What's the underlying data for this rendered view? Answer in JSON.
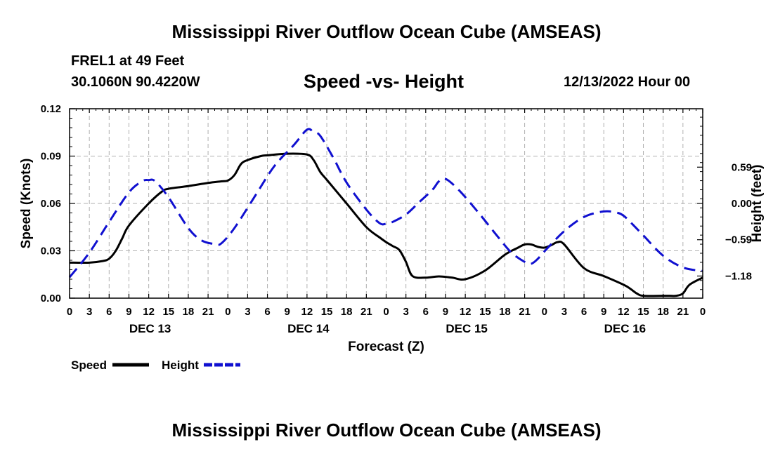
{
  "header": {
    "title": "Mississippi River Outflow Ocean Cube (AMSEAS)",
    "station": "FREL1 at 49 Feet",
    "coords": "30.1060N  90.4220W",
    "subtitle": "Speed -vs- Height",
    "datetime": "12/13/2022 Hour 00"
  },
  "footer": {
    "title": "Mississippi River Outflow Ocean Cube (AMSEAS)"
  },
  "colors": {
    "speed": "#000000",
    "height": "#1010d0",
    "grid": "#b0b0b0"
  },
  "chart_data": {
    "type": "line",
    "title": "Speed -vs- Height",
    "xlabel": "Forecast (Z)",
    "ylabel": "Speed (Knots)",
    "y2label": "Height (feet)",
    "xlim": [
      0,
      96
    ],
    "ylim": [
      0,
      0.12
    ],
    "y2lim": [
      -1.54,
      1.54
    ],
    "x_tick_step_hours": 3,
    "x_tick_labels": [
      "0",
      "3",
      "6",
      "9",
      "12",
      "15",
      "18",
      "21",
      "0",
      "3",
      "6",
      "9",
      "12",
      "15",
      "18",
      "21",
      "0",
      "3",
      "6",
      "9",
      "12",
      "15",
      "18",
      "21",
      "0",
      "3",
      "6",
      "9",
      "12",
      "15",
      "18",
      "21",
      "0"
    ],
    "day_labels": [
      {
        "hour": 12,
        "label": "DEC 13"
      },
      {
        "hour": 36,
        "label": "DEC 14"
      },
      {
        "hour": 60,
        "label": "DEC 15"
      },
      {
        "hour": 84,
        "label": "DEC 16"
      }
    ],
    "y_ticks": [
      0.0,
      0.03,
      0.06,
      0.09,
      0.12
    ],
    "y_tick_labels": [
      "0.00",
      "0.03",
      "0.06",
      "0.09",
      "0.12"
    ],
    "y2_ticks": [
      -1.18,
      -0.59,
      0.0,
      0.59
    ],
    "y2_tick_labels": [
      "−1.18",
      "−0.59",
      "0.00",
      "0.59"
    ],
    "grid": true,
    "legend": [
      "Speed",
      "Height"
    ],
    "series": [
      {
        "name": "Speed",
        "axis": "left",
        "style": "solid",
        "x": [
          0,
          3,
          5,
          6,
          7,
          8,
          9,
          12,
          14,
          15,
          18,
          21,
          23,
          24,
          25,
          26,
          27,
          29,
          30,
          33,
          36,
          37,
          38,
          39,
          42,
          45,
          47,
          48,
          49,
          50,
          51,
          52,
          54,
          56,
          58,
          60,
          63,
          66,
          68,
          69,
          70,
          71,
          72,
          73,
          74,
          75,
          78,
          81,
          84,
          85,
          86,
          87,
          90,
          91,
          92,
          93,
          94,
          96
        ],
        "y": [
          0.0225,
          0.0225,
          0.0235,
          0.025,
          0.03,
          0.038,
          0.046,
          0.06,
          0.0675,
          0.0693,
          0.071,
          0.073,
          0.074,
          0.0745,
          0.078,
          0.085,
          0.0875,
          0.09,
          0.0905,
          0.0915,
          0.091,
          0.0875,
          0.08,
          0.075,
          0.06,
          0.045,
          0.0385,
          0.0355,
          0.033,
          0.0305,
          0.023,
          0.014,
          0.013,
          0.0138,
          0.013,
          0.012,
          0.0175,
          0.0275,
          0.032,
          0.034,
          0.034,
          0.0325,
          0.032,
          0.0335,
          0.0355,
          0.034,
          0.019,
          0.014,
          0.0085,
          0.006,
          0.003,
          0.0015,
          0.0015,
          0.0015,
          0.0015,
          0.003,
          0.0085,
          0.013
        ]
      },
      {
        "name": "Height",
        "axis": "right",
        "style": "dashed",
        "x": [
          0,
          3,
          6,
          9,
          11,
          12,
          13,
          15,
          18,
          20,
          22,
          23,
          25,
          28,
          31,
          34,
          36,
          37,
          38,
          40,
          42,
          45,
          47,
          48,
          49,
          51,
          53,
          55,
          56,
          57,
          59,
          62,
          65,
          67,
          69,
          70,
          71,
          72,
          75,
          78,
          81,
          83,
          84,
          85,
          87,
          90,
          93,
          96
        ],
        "y": [
          -1.2,
          -0.8,
          -0.3,
          0.18,
          0.36,
          0.38,
          0.36,
          0.1,
          -0.4,
          -0.6,
          -0.66,
          -0.65,
          -0.4,
          0.1,
          0.6,
          0.95,
          1.2,
          1.16,
          1.1,
          0.74,
          0.34,
          -0.1,
          -0.32,
          -0.33,
          -0.3,
          -0.18,
          0.02,
          0.22,
          0.36,
          0.4,
          0.22,
          -0.15,
          -0.55,
          -0.8,
          -0.95,
          -0.98,
          -0.9,
          -0.78,
          -0.45,
          -0.22,
          -0.13,
          -0.15,
          -0.2,
          -0.3,
          -0.52,
          -0.85,
          -1.04,
          -1.1
        ]
      }
    ]
  }
}
